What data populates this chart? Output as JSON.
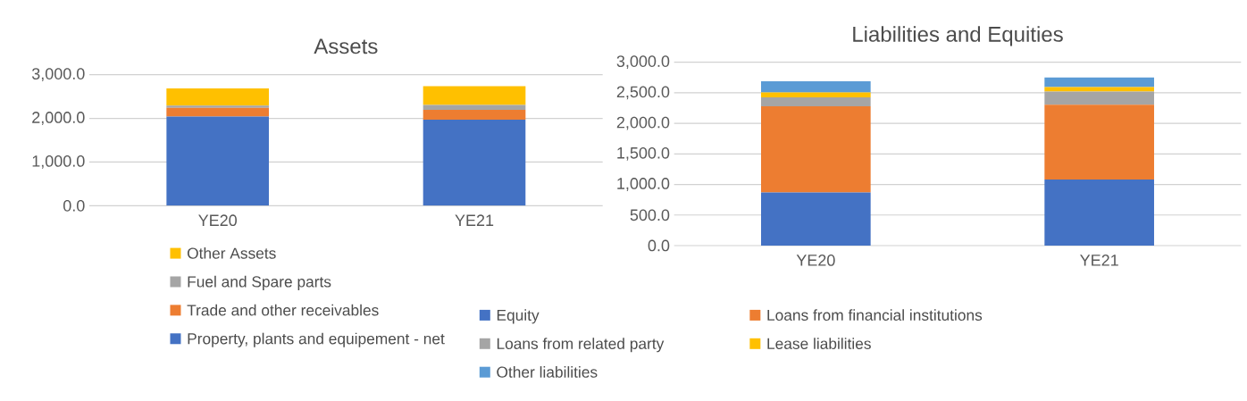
{
  "chart_data": [
    {
      "type": "bar",
      "title": "Assets",
      "stacked": true,
      "categories": [
        "YE20",
        "YE21"
      ],
      "ylim": [
        0,
        3000
      ],
      "yticks": [
        {
          "value": 0,
          "label": "0.0"
        },
        {
          "value": 1000,
          "label": "1,000.0"
        },
        {
          "value": 2000,
          "label": "2,000.0"
        },
        {
          "value": 3000,
          "label": "3,000.0"
        }
      ],
      "grid": "y",
      "legend": "bottom",
      "series": [
        {
          "name": "Property, plants and equipement - net",
          "color": "#4472c4",
          "values": [
            2040,
            1970
          ]
        },
        {
          "name": "Trade and other receivables",
          "color": "#ed7d31",
          "values": [
            200,
            225
          ]
        },
        {
          "name": "Fuel and Spare parts",
          "color": "#a5a5a5",
          "values": [
            55,
            115
          ]
        },
        {
          "name": "Other Assets",
          "color": "#ffc000",
          "values": [
            390,
            425
          ]
        }
      ]
    },
    {
      "type": "bar",
      "title": "Liabilities and Equities",
      "stacked": true,
      "categories": [
        "YE20",
        "YE21"
      ],
      "ylim": [
        0,
        3000
      ],
      "yticks": [
        {
          "value": 0,
          "label": "0.0"
        },
        {
          "value": 500,
          "label": "500.0"
        },
        {
          "value": 1000,
          "label": "1,000.0"
        },
        {
          "value": 1500,
          "label": "1,500.0"
        },
        {
          "value": 2000,
          "label": "2,000.0"
        },
        {
          "value": 2500,
          "label": "2,500.0"
        },
        {
          "value": 3000,
          "label": "3,000.0"
        }
      ],
      "grid": "y",
      "legend": "bottom",
      "series": [
        {
          "name": "Equity",
          "color": "#4472c4",
          "values": [
            870,
            1080
          ]
        },
        {
          "name": "Loans from financial institutions",
          "color": "#ed7d31",
          "values": [
            1410,
            1225
          ]
        },
        {
          "name": "Loans from related party",
          "color": "#a5a5a5",
          "values": [
            145,
            215
          ]
        },
        {
          "name": "Lease liabilities",
          "color": "#ffc000",
          "values": [
            80,
            75
          ]
        },
        {
          "name": "Other liabilities",
          "color": "#5b9bd5",
          "values": [
            185,
            155
          ]
        }
      ]
    }
  ]
}
